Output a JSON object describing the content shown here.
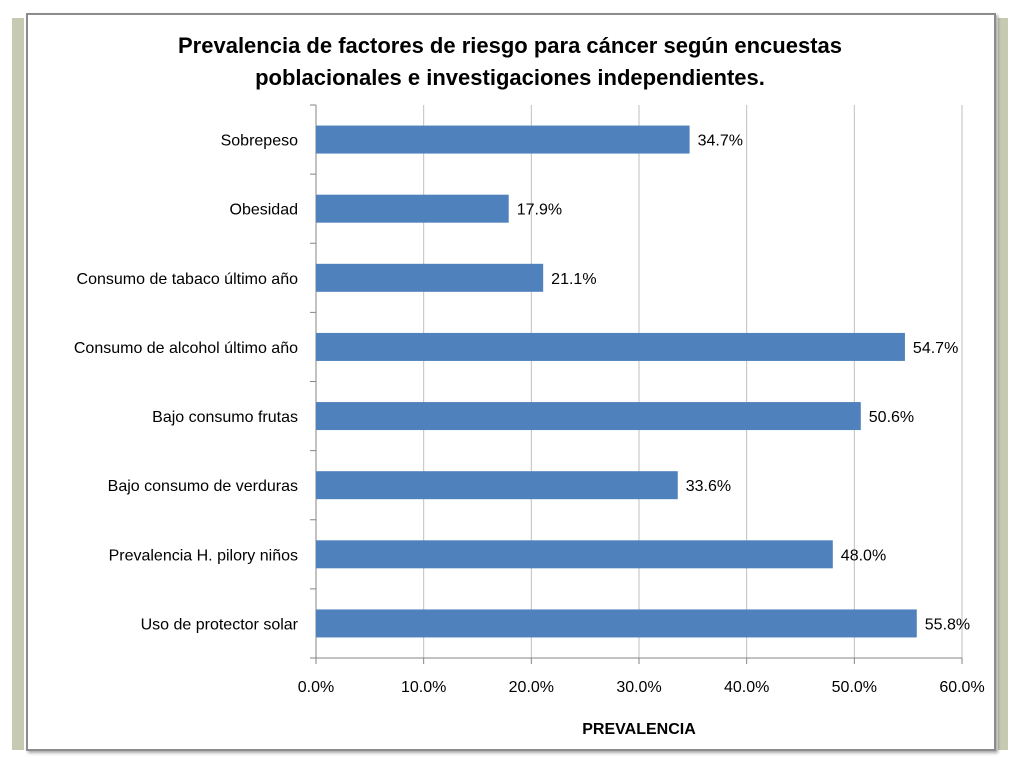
{
  "chart_data": {
    "type": "bar",
    "orientation": "horizontal",
    "title": "Prevalencia de factores de riesgo para cáncer según encuestas poblacionales e investigaciones independientes.",
    "title_lines": [
      "Prevalencia de factores de riesgo para cáncer según encuestas",
      "poblacionales e investigaciones independientes."
    ],
    "xlabel": "PREVALENCIA",
    "ylabel": "",
    "categories": [
      "Sobrepeso",
      "Obesidad",
      "Consumo de tabaco último año",
      "Consumo de alcohol último año",
      "Bajo consumo frutas",
      "Bajo consumo de verduras",
      "Prevalencia H. pilory niños",
      "Uso de protector solar"
    ],
    "values": [
      34.7,
      17.9,
      21.1,
      54.7,
      50.6,
      33.6,
      48.0,
      55.8
    ],
    "value_labels": [
      "34.7%",
      "17.9%",
      "21.1%",
      "54.7%",
      "50.6%",
      "33.6%",
      "48.0%",
      "55.8%"
    ],
    "xlim": [
      0,
      60
    ],
    "x_ticks": [
      0,
      10,
      20,
      30,
      40,
      50,
      60
    ],
    "x_tick_labels": [
      "0.0%",
      "10.0%",
      "20.0%",
      "30.0%",
      "40.0%",
      "50.0%",
      "60.0%"
    ],
    "grid": "vertical",
    "legend": "none",
    "colors": {
      "bar": "#4f81bd",
      "grid": "#bfbfbf",
      "axis": "#868686"
    }
  }
}
